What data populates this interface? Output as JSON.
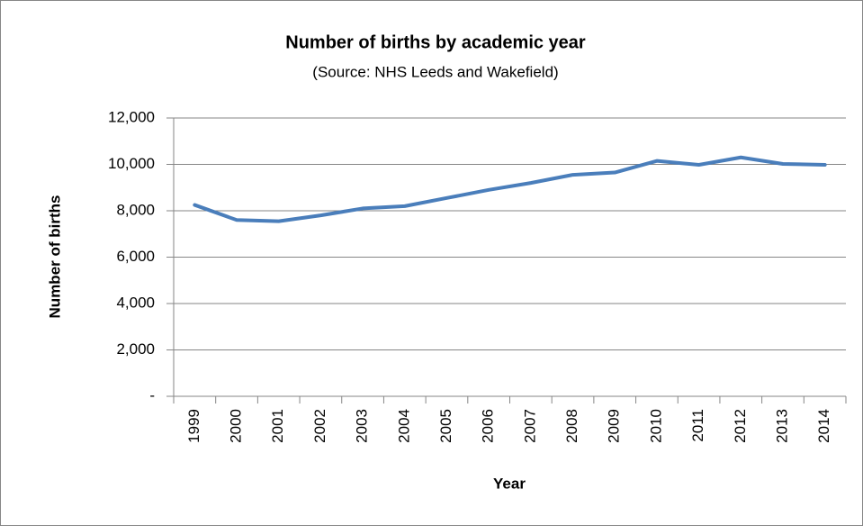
{
  "chart_data": {
    "type": "line",
    "title": "Number of births by academic year",
    "subtitle": "(Source: NHS Leeds and Wakefield)",
    "x_label": "Year",
    "y_label": "Number of births",
    "categories": [
      "1999",
      "2000",
      "2001",
      "2002",
      "2003",
      "2004",
      "2005",
      "2006",
      "2007",
      "2008",
      "2009",
      "2010",
      "2011",
      "2012",
      "2013",
      "2014"
    ],
    "series": [
      {
        "name": "Number of births",
        "color": "#4a7ebb",
        "values": [
          8250,
          7600,
          7550,
          7800,
          8100,
          8200,
          8550,
          8900,
          9200,
          9550,
          9650,
          10150,
          9980,
          10300,
          10020,
          9980
        ]
      }
    ],
    "ylim": [
      0,
      12000
    ],
    "yticks": [
      {
        "value": 0,
        "label": "-"
      },
      {
        "value": 2000,
        "label": "2,000"
      },
      {
        "value": 4000,
        "label": "4,000"
      },
      {
        "value": 6000,
        "label": "6,000"
      },
      {
        "value": 8000,
        "label": "8,000"
      },
      {
        "value": 10000,
        "label": "10,000"
      },
      {
        "value": 12000,
        "label": "12,000"
      }
    ],
    "grid": true
  }
}
